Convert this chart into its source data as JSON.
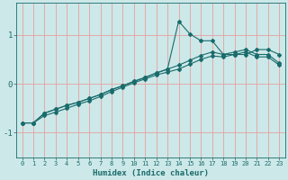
{
  "xlabel": "Humidex (Indice chaleur)",
  "xlim": [
    -0.5,
    23.5
  ],
  "ylim": [
    -1.5,
    1.65
  ],
  "yticks": [
    -1,
    0,
    1
  ],
  "xticks": [
    0,
    1,
    2,
    3,
    4,
    5,
    6,
    7,
    8,
    9,
    10,
    11,
    12,
    13,
    14,
    15,
    16,
    17,
    18,
    19,
    20,
    21,
    22,
    23
  ],
  "bg_color": "#cce8e8",
  "line_color": "#1a6b6b",
  "grid_color": "#e8a0a0",
  "line1_x": [
    0,
    1,
    2,
    3,
    4,
    5,
    6,
    7,
    8,
    9,
    10,
    11,
    12,
    13,
    14,
    15,
    16,
    17,
    18,
    19,
    20,
    21,
    22,
    23
  ],
  "line1_y": [
    -0.8,
    -0.8,
    -0.6,
    -0.52,
    -0.44,
    -0.38,
    -0.3,
    -0.22,
    -0.12,
    -0.04,
    0.05,
    0.13,
    0.22,
    0.3,
    1.28,
    1.02,
    0.88,
    0.88,
    0.6,
    0.6,
    0.6,
    0.7,
    0.7,
    0.6
  ],
  "line2_x": [
    0,
    1,
    2,
    3,
    4,
    5,
    6,
    7,
    8,
    9,
    10,
    11,
    12,
    13,
    14,
    15,
    16,
    17,
    18,
    19,
    20,
    21,
    22,
    23
  ],
  "line2_y": [
    -0.8,
    -0.8,
    -0.6,
    -0.52,
    -0.44,
    -0.38,
    -0.3,
    -0.22,
    -0.12,
    -0.04,
    0.05,
    0.13,
    0.22,
    0.3,
    0.38,
    0.48,
    0.58,
    0.65,
    0.6,
    0.65,
    0.7,
    0.6,
    0.6,
    0.42
  ],
  "line3_x": [
    0,
    1,
    2,
    3,
    4,
    5,
    6,
    7,
    8,
    9,
    10,
    11,
    12,
    13,
    14,
    15,
    16,
    17,
    18,
    19,
    20,
    21,
    22,
    23
  ],
  "line3_y": [
    -0.8,
    -0.8,
    -0.65,
    -0.58,
    -0.5,
    -0.42,
    -0.35,
    -0.26,
    -0.16,
    -0.07,
    0.02,
    0.1,
    0.18,
    0.24,
    0.3,
    0.4,
    0.5,
    0.57,
    0.55,
    0.6,
    0.65,
    0.55,
    0.55,
    0.38
  ]
}
